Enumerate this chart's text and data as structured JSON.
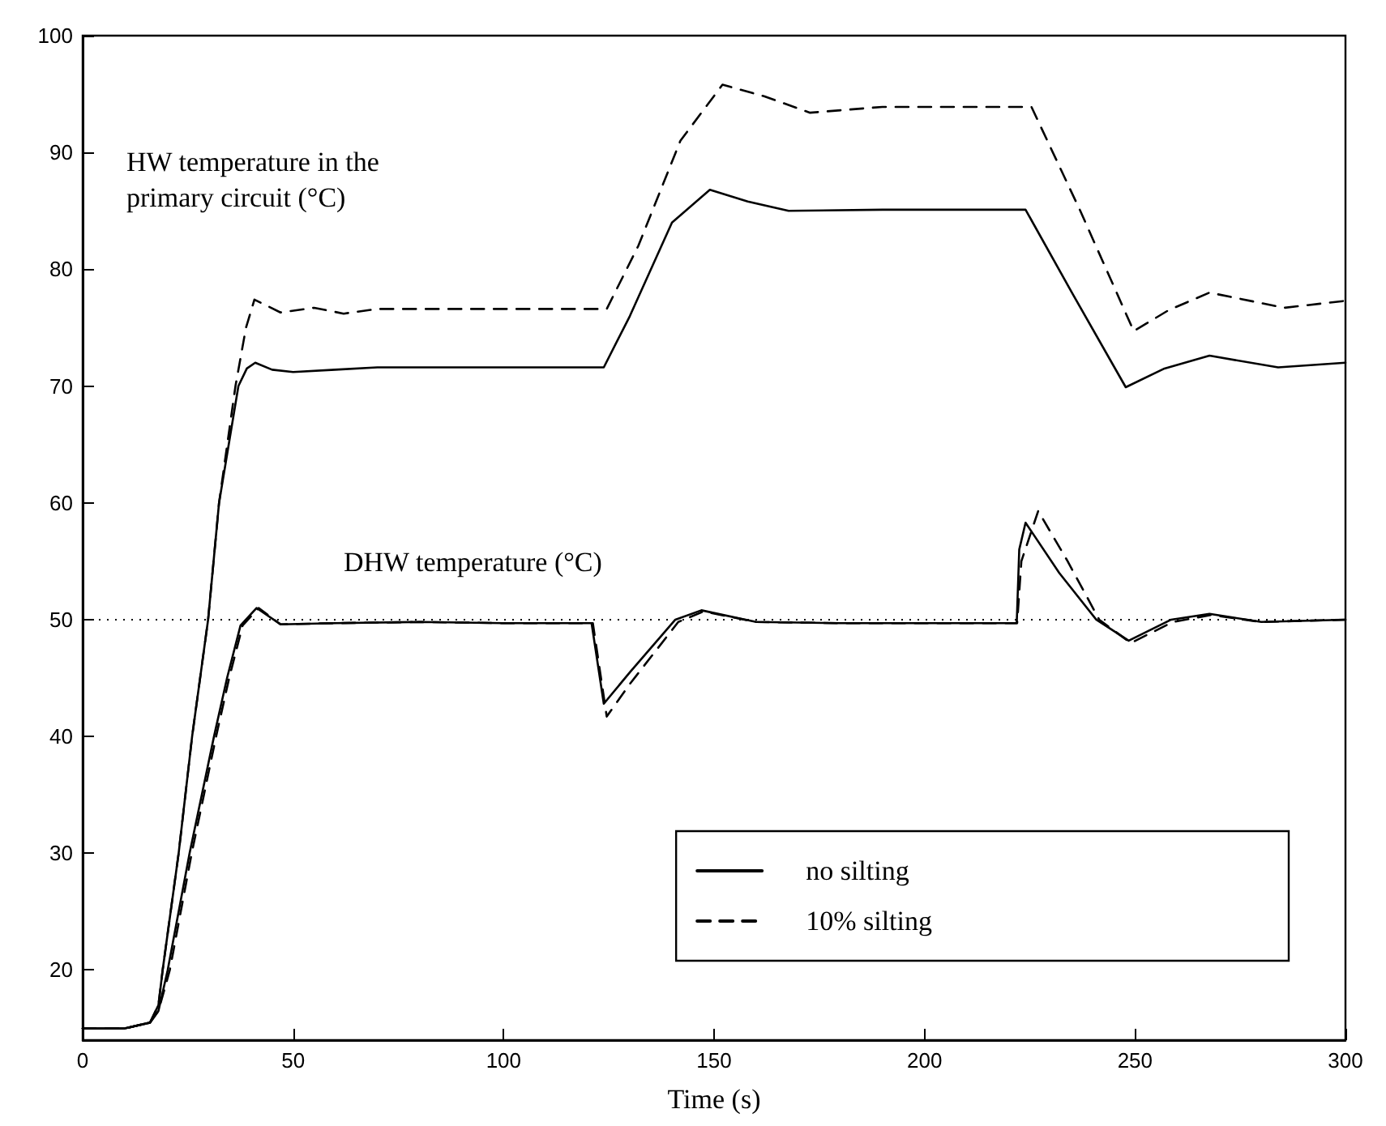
{
  "chart_data": {
    "type": "line",
    "xlabel": "Time (s)",
    "xlim": [
      0,
      300
    ],
    "xticks": [
      0,
      50,
      100,
      150,
      200,
      250,
      300
    ],
    "ylim": [
      14,
      100
    ],
    "yticks": [
      20,
      30,
      40,
      50,
      60,
      70,
      80,
      90,
      100
    ],
    "grid": false,
    "legend": "bottom right",
    "marker": "none",
    "ref_lines": [
      {
        "axis": "y",
        "value": 50,
        "line_style": "dotted",
        "color": "#000000"
      }
    ],
    "annotations": [
      "HW temperature in the\nprimary circuit (°C)",
      "DHW temperature (°C)"
    ],
    "series": [
      {
        "name": "no silting",
        "color": "#000000",
        "line_style": "solid",
        "x": [
          0,
          10,
          16,
          18,
          19,
          22.8,
          26,
          29.8,
          32.4,
          37,
          39,
          41,
          45,
          50,
          60,
          70,
          90,
          110,
          123.8,
          130,
          140,
          149,
          158,
          167.7,
          190,
          224,
          235,
          247.8,
          257,
          267.7,
          284,
          300
        ],
        "values": [
          15,
          15,
          15.5,
          17,
          20,
          30,
          40,
          50,
          60,
          70,
          71.5,
          72,
          71.4,
          71.2,
          71.4,
          71.6,
          71.6,
          71.6,
          71.6,
          76,
          84,
          86.8,
          85.8,
          85,
          85.1,
          85.1,
          78,
          69.9,
          71.5,
          72.6,
          71.6,
          72
        ]
      },
      {
        "name": "10% silting",
        "color": "#000000",
        "line_style": "dashed",
        "x": [
          0,
          10,
          16,
          18,
          19,
          22.8,
          26,
          29.8,
          32.4,
          36.3,
          38.8,
          40.8,
          47,
          55,
          62,
          70,
          90,
          110,
          124.5,
          132,
          142,
          152,
          162,
          172.8,
          190,
          225.4,
          237,
          249.7,
          258,
          267.7,
          285.5,
          300
        ],
        "values": [
          15,
          15,
          15.5,
          17,
          20,
          30,
          40,
          50,
          60,
          70,
          75,
          77.4,
          76.3,
          76.7,
          76.2,
          76.6,
          76.6,
          76.6,
          76.6,
          82,
          91,
          95.8,
          94.8,
          93.4,
          93.9,
          93.9,
          85,
          74.7,
          76.5,
          78,
          76.7,
          77.3
        ]
      },
      {
        "color": "#000000",
        "line_style": "solid",
        "x": [
          0,
          10,
          16,
          18,
          20.2,
          25.4,
          31.2,
          34.3,
          37.5,
          41.3,
          47,
          60,
          80,
          100,
          120.9,
          123.8,
          130,
          140.8,
          147,
          160,
          180,
          221.9,
          222.5,
          224,
          232,
          240.8,
          248.5,
          258.6,
          267.7,
          280,
          300
        ],
        "values": [
          15,
          15,
          15.5,
          16.5,
          20,
          30,
          40,
          45,
          49.5,
          51,
          49.6,
          49.7,
          49.8,
          49.7,
          49.7,
          42.8,
          45.5,
          50,
          50.8,
          49.8,
          49.7,
          49.7,
          56,
          58.3,
          54,
          50,
          48.2,
          50,
          50.5,
          49.8,
          50
        ]
      },
      {
        "color": "#000000",
        "line_style": "dashed",
        "x": [
          0,
          10,
          16,
          18,
          20.7,
          25.9,
          31.7,
          34.8,
          38,
          41.8,
          47,
          60,
          80,
          100,
          121.2,
          124.5,
          130,
          141.5,
          147.5,
          160,
          180,
          222,
          223,
          227,
          234,
          241.5,
          249,
          259,
          268,
          280,
          300
        ],
        "values": [
          15,
          15,
          15.5,
          16.5,
          20,
          30,
          40,
          45,
          49.5,
          51,
          49.6,
          49.7,
          49.8,
          49.7,
          49.7,
          41.7,
          44.5,
          49.8,
          50.7,
          49.8,
          49.7,
          49.7,
          55,
          59.3,
          55,
          50,
          48,
          49.8,
          50.4,
          49.8,
          50
        ]
      }
    ]
  }
}
